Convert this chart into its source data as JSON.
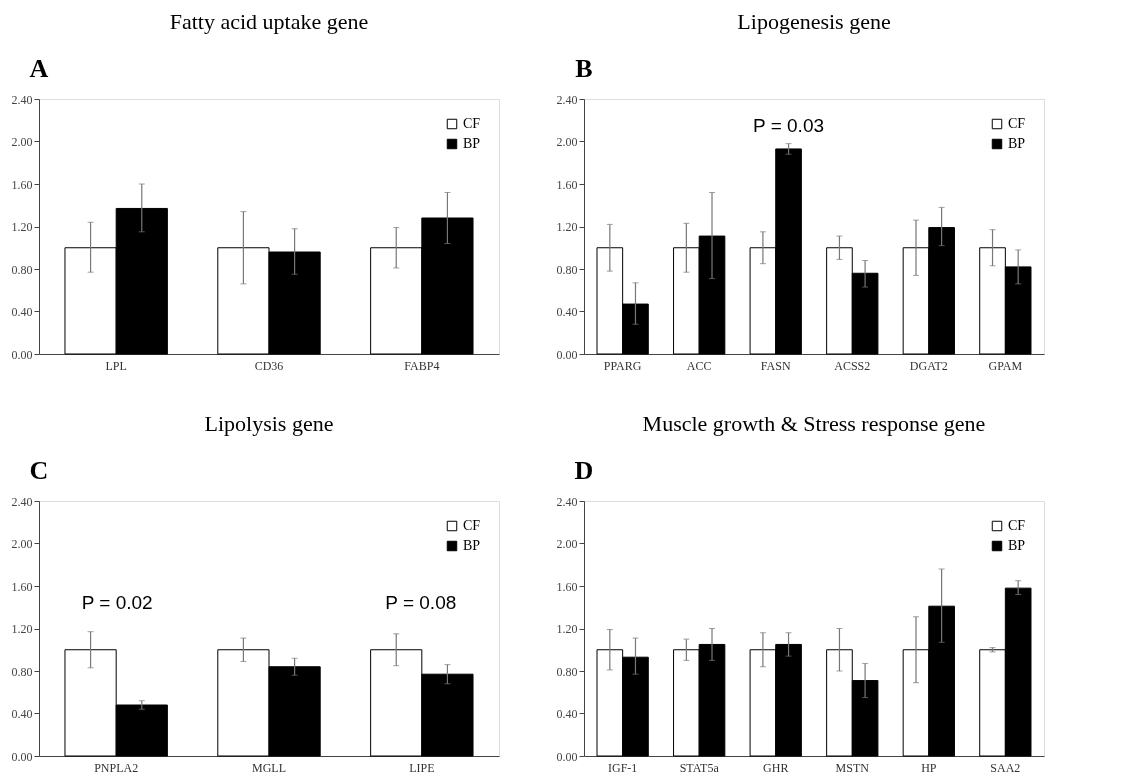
{
  "chart_data": [
    {
      "type": "bar",
      "title": "Fatty acid uptake gene",
      "annotations": [
        "A"
      ],
      "categories": [
        "LPL",
        "CD36",
        "FABP4"
      ],
      "series": [
        {
          "name": "CF",
          "color": "#ffffff",
          "values": [
            1.0,
            1.0,
            1.0
          ],
          "errors": [
            [
              0.77,
              1.24
            ],
            [
              0.66,
              1.34
            ],
            [
              0.81,
              1.19
            ]
          ]
        },
        {
          "name": "BP",
          "color": "#000000",
          "values": [
            1.37,
            0.96,
            1.28
          ],
          "errors": [
            [
              1.15,
              1.6
            ],
            [
              0.75,
              1.18
            ],
            [
              1.04,
              1.52
            ]
          ]
        }
      ],
      "ylim": [
        0,
        2.4
      ],
      "yticks": [
        {
          "value": 0,
          "label": "0.00"
        },
        {
          "value": 0.4,
          "label": "0.40"
        },
        {
          "value": 0.8,
          "label": "0.80"
        },
        {
          "value": 1.2,
          "label": "1.20"
        },
        {
          "value": 1.6,
          "label": "1.60"
        },
        {
          "value": 2.0,
          "label": "2.00"
        },
        {
          "value": 2.4,
          "label": "2.40"
        }
      ],
      "grid": false,
      "legend": "top right"
    },
    {
      "type": "bar",
      "title": "Lipogenesis gene",
      "annotations": [
        "B",
        {
          "text": "P = 0.03",
          "x": "FASN",
          "y": 1.98
        }
      ],
      "categories": [
        "PPARG",
        "ACC",
        "FASN",
        "ACSS2",
        "DGAT2",
        "GPAM"
      ],
      "series": [
        {
          "name": "CF",
          "color": "#ffffff",
          "values": [
            1.0,
            1.0,
            1.0,
            1.0,
            1.0,
            1.0
          ],
          "errors": [
            [
              0.78,
              1.22
            ],
            [
              0.77,
              1.23
            ],
            [
              0.85,
              1.15
            ],
            [
              0.89,
              1.11
            ],
            [
              0.74,
              1.26
            ],
            [
              0.83,
              1.17
            ]
          ]
        },
        {
          "name": "BP",
          "color": "#000000",
          "values": [
            0.47,
            1.11,
            1.93,
            0.76,
            1.19,
            0.82
          ],
          "errors": [
            [
              0.28,
              0.67
            ],
            [
              0.71,
              1.52
            ],
            [
              1.88,
              1.98
            ],
            [
              0.63,
              0.88
            ],
            [
              1.02,
              1.38
            ],
            [
              0.66,
              0.98
            ]
          ]
        }
      ],
      "ylim": [
        0,
        2.4
      ],
      "yticks": [
        {
          "value": 0,
          "label": "0.00"
        },
        {
          "value": 0.4,
          "label": "0.40"
        },
        {
          "value": 0.8,
          "label": "0.80"
        },
        {
          "value": 1.2,
          "label": "1.20"
        },
        {
          "value": 1.6,
          "label": "1.60"
        },
        {
          "value": 2.0,
          "label": "2.00"
        },
        {
          "value": 2.4,
          "label": "2.40"
        }
      ],
      "grid": false,
      "legend": "top right"
    },
    {
      "type": "bar",
      "title": "Lipolysis gene",
      "annotations": [
        "C",
        "P = 0.02",
        "P = 0.08"
      ],
      "categories": [
        "PNPLA2",
        "MGLL",
        "LIPE"
      ],
      "series": [
        {
          "name": "CF",
          "color": "#ffffff",
          "values": [
            1.0,
            1.0,
            1.0
          ],
          "errors": [
            [
              0.83,
              1.17
            ],
            [
              0.89,
              1.11
            ],
            [
              0.85,
              1.15
            ]
          ]
        },
        {
          "name": "BP",
          "color": "#000000",
          "values": [
            0.48,
            0.84,
            0.77
          ],
          "errors": [
            [
              0.44,
              0.52
            ],
            [
              0.76,
              0.92
            ],
            [
              0.68,
              0.86
            ]
          ]
        }
      ],
      "ylim": [
        0,
        2.4
      ],
      "yticks": [
        {
          "value": 0,
          "label": "0.00"
        },
        {
          "value": 0.4,
          "label": "0.40"
        },
        {
          "value": 0.8,
          "label": "0.80"
        },
        {
          "value": 1.2,
          "label": "1.20"
        },
        {
          "value": 1.6,
          "label": "1.60"
        },
        {
          "value": 2.0,
          "label": "2.00"
        },
        {
          "value": 2.4,
          "label": "2.40"
        }
      ],
      "grid": false,
      "legend": "top right"
    },
    {
      "type": "bar",
      "title": "Muscle growth & Stress response gene",
      "annotations": [
        "D"
      ],
      "categories": [
        "IGF-1",
        "STAT5a",
        "GHR",
        "MSTN",
        "HP",
        "SAA2"
      ],
      "series": [
        {
          "name": "CF",
          "color": "#ffffff",
          "values": [
            1.0,
            1.0,
            1.0,
            1.0,
            1.0,
            1.0
          ],
          "errors": [
            [
              0.81,
              1.19
            ],
            [
              0.9,
              1.1
            ],
            [
              0.84,
              1.16
            ],
            [
              0.8,
              1.2
            ],
            [
              0.69,
              1.31
            ],
            [
              0.98,
              1.02
            ]
          ]
        },
        {
          "name": "BP",
          "color": "#000000",
          "values": [
            0.93,
            1.05,
            1.05,
            0.71,
            1.41,
            1.58
          ],
          "errors": [
            [
              0.77,
              1.11
            ],
            [
              0.9,
              1.2
            ],
            [
              0.94,
              1.16
            ],
            [
              0.55,
              0.87
            ],
            [
              1.07,
              1.76
            ],
            [
              1.52,
              1.65
            ]
          ]
        }
      ],
      "ylim": [
        0,
        2.4
      ],
      "yticks": [
        {
          "value": 0,
          "label": "0.00"
        },
        {
          "value": 0.4,
          "label": "0.40"
        },
        {
          "value": 0.8,
          "label": "0.80"
        },
        {
          "value": 1.2,
          "label": "1.20"
        },
        {
          "value": 1.6,
          "label": "1.60"
        },
        {
          "value": 2.0,
          "label": "2.00"
        },
        {
          "value": 2.4,
          "label": "2.40"
        }
      ],
      "grid": false,
      "legend": "top right"
    }
  ]
}
